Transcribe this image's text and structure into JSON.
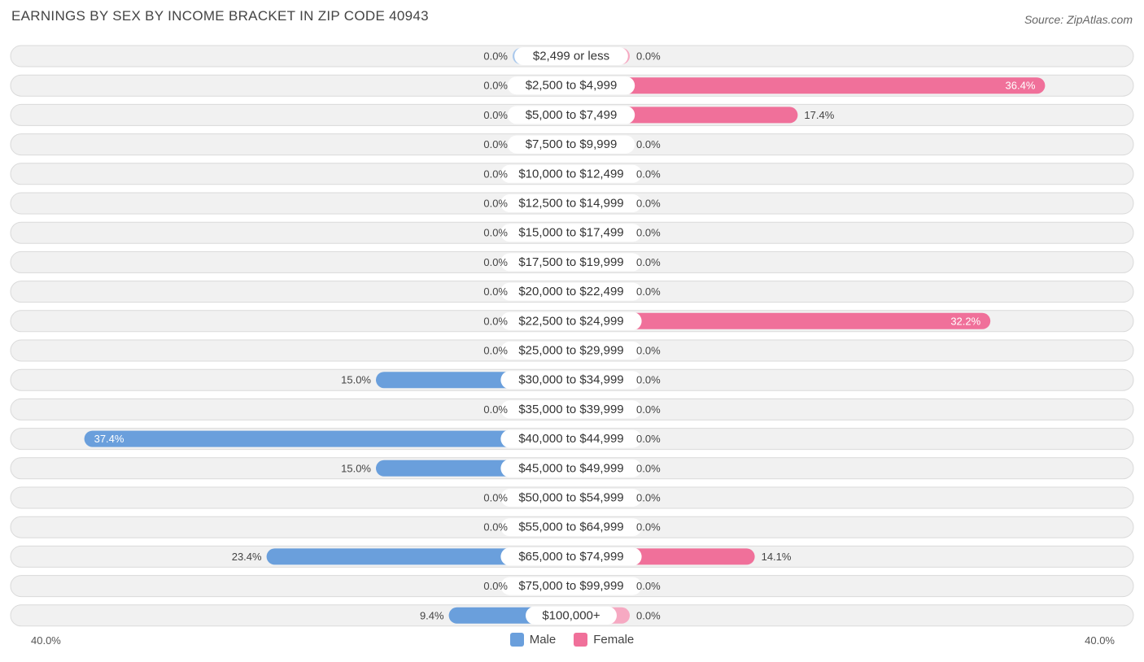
{
  "header": {
    "title": "EARNINGS BY SEX BY INCOME BRACKET IN ZIP CODE 40943",
    "source": "Source: ZipAtlas.com"
  },
  "colors": {
    "male": "#6a9fdc",
    "male_light": "#a9c8ec",
    "female": "#f0709a",
    "female_light": "#f6a9c2"
  },
  "chart_data": {
    "type": "bar",
    "orientation": "horizontal-diverging",
    "title": "EARNINGS BY SEX BY INCOME BRACKET IN ZIP CODE 40943",
    "categories": [
      "$2,499 or less",
      "$2,500 to $4,999",
      "$5,000 to $7,499",
      "$7,500 to $9,999",
      "$10,000 to $12,499",
      "$12,500 to $14,999",
      "$15,000 to $17,499",
      "$17,500 to $19,999",
      "$20,000 to $22,499",
      "$22,500 to $24,999",
      "$25,000 to $29,999",
      "$30,000 to $34,999",
      "$35,000 to $39,999",
      "$40,000 to $44,999",
      "$45,000 to $49,999",
      "$50,000 to $54,999",
      "$55,000 to $64,999",
      "$65,000 to $74,999",
      "$75,000 to $99,999",
      "$100,000+"
    ],
    "series": [
      {
        "name": "Male",
        "values": [
          0.0,
          0.0,
          0.0,
          0.0,
          0.0,
          0.0,
          0.0,
          0.0,
          0.0,
          0.0,
          0.0,
          15.0,
          0.0,
          37.4,
          15.0,
          0.0,
          0.0,
          23.4,
          0.0,
          9.4
        ],
        "labels": [
          "0.0%",
          "0.0%",
          "0.0%",
          "0.0%",
          "0.0%",
          "0.0%",
          "0.0%",
          "0.0%",
          "0.0%",
          "0.0%",
          "0.0%",
          "15.0%",
          "0.0%",
          "37.4%",
          "15.0%",
          "0.0%",
          "0.0%",
          "23.4%",
          "0.0%",
          "9.4%"
        ]
      },
      {
        "name": "Female",
        "values": [
          0.0,
          36.4,
          17.4,
          0.0,
          0.0,
          0.0,
          0.0,
          0.0,
          0.0,
          32.2,
          0.0,
          0.0,
          0.0,
          0.0,
          0.0,
          0.0,
          0.0,
          14.1,
          0.0,
          0.0
        ],
        "labels": [
          "0.0%",
          "36.4%",
          "17.4%",
          "0.0%",
          "0.0%",
          "0.0%",
          "0.0%",
          "0.0%",
          "0.0%",
          "32.2%",
          "0.0%",
          "0.0%",
          "0.0%",
          "0.0%",
          "0.0%",
          "0.0%",
          "0.0%",
          "14.1%",
          "0.0%",
          "0.0%"
        ]
      }
    ],
    "xlim": [
      -40,
      40
    ],
    "axis_min_label": "40.0%",
    "axis_max_label": "40.0%",
    "unit": "%",
    "legend": [
      "Male",
      "Female"
    ],
    "legend_position": "bottom-center"
  }
}
